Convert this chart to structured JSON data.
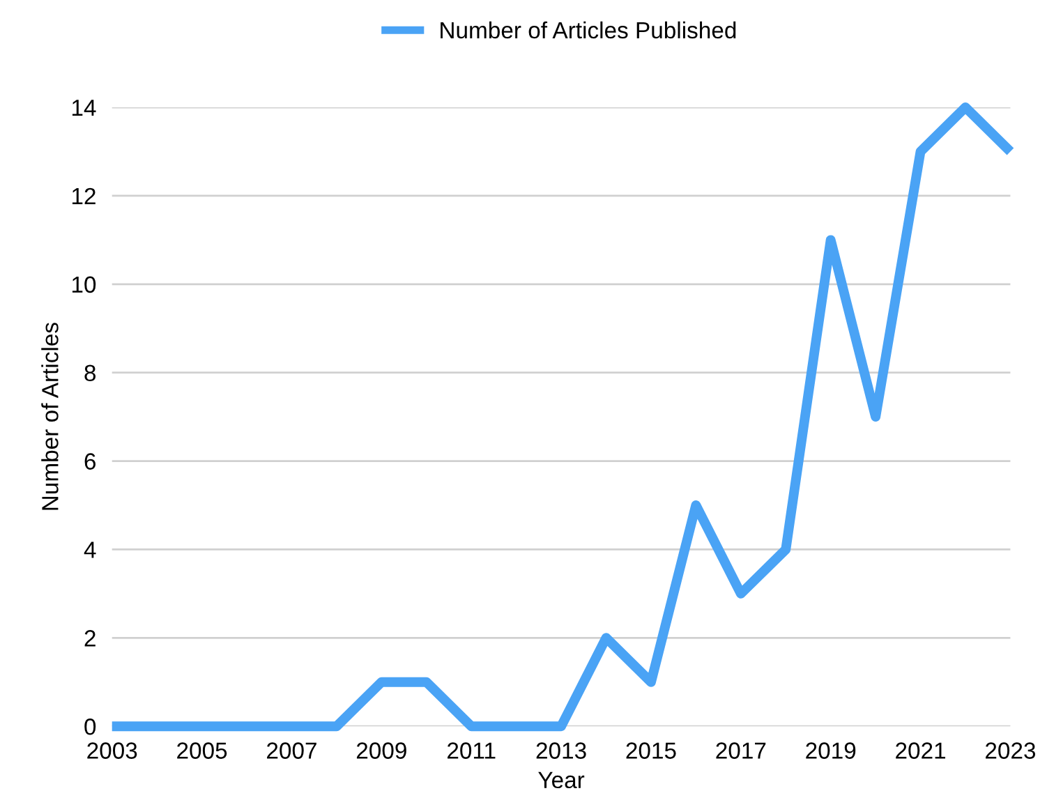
{
  "chart_data": {
    "type": "line",
    "xlabel": "Year",
    "ylabel": "Number of Articles",
    "x": [
      2003,
      2004,
      2005,
      2006,
      2007,
      2008,
      2009,
      2010,
      2011,
      2012,
      2013,
      2014,
      2015,
      2016,
      2017,
      2018,
      2019,
      2020,
      2021,
      2022,
      2023
    ],
    "series": [
      {
        "name": "Number of Articles Published",
        "color": "#4aa3f5",
        "values": [
          0,
          0,
          0,
          0,
          0,
          0,
          1,
          1,
          0,
          0,
          0,
          2,
          1,
          5,
          3,
          4,
          11,
          7,
          13,
          14,
          13
        ]
      }
    ],
    "xlim": [
      2003,
      2023
    ],
    "xticks": [
      2003,
      2005,
      2007,
      2009,
      2011,
      2013,
      2015,
      2017,
      2019,
      2021,
      2023
    ],
    "ylim": [
      0,
      14
    ],
    "yticks": [
      0,
      2,
      4,
      6,
      8,
      10,
      12,
      14
    ],
    "grid": "y",
    "legend": "top",
    "marker": "none",
    "line_style": "solid"
  }
}
